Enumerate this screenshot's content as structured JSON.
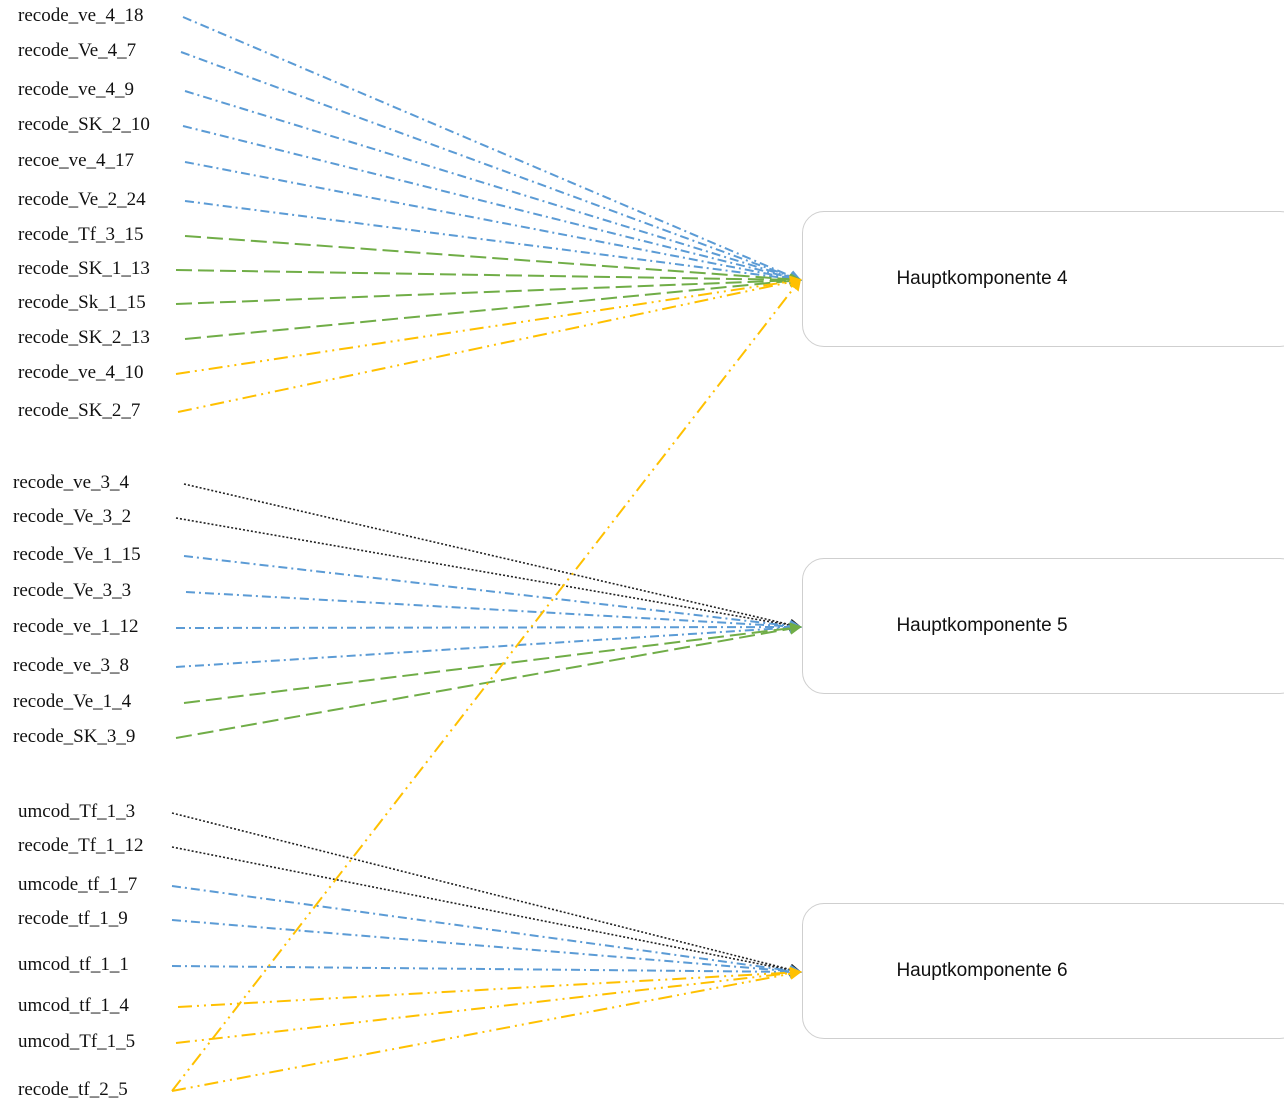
{
  "components": [
    {
      "id": "hk4",
      "label": "Hauptkomponente 4"
    },
    {
      "id": "hk5",
      "label": "Hauptkomponente 5"
    },
    {
      "id": "hk6",
      "label": "Hauptkomponente 6"
    }
  ],
  "line_styles": {
    "blue": {
      "color": "#5b9bd5",
      "dash": "dash-dot"
    },
    "green": {
      "color": "#70ad47",
      "dash": "long-dash"
    },
    "yellow": {
      "color": "#ffc000",
      "dash": "long-dash-dot-dot"
    },
    "black": {
      "color": "#222222",
      "dash": "dotted"
    }
  },
  "variables": [
    {
      "label": "recode_ve_4_18",
      "target": "hk4",
      "style": "blue"
    },
    {
      "label": "recode_Ve_4_7",
      "target": "hk4",
      "style": "blue"
    },
    {
      "label": "recode_ve_4_9",
      "target": "hk4",
      "style": "blue"
    },
    {
      "label": "recode_SK_2_10",
      "target": "hk4",
      "style": "blue"
    },
    {
      "label": "recoe_ve_4_17",
      "target": "hk4",
      "style": "blue"
    },
    {
      "label": "recode_Ve_2_24",
      "target": "hk4",
      "style": "blue"
    },
    {
      "label": "recode_Tf_3_15",
      "target": "hk4",
      "style": "green"
    },
    {
      "label": "recode_SK_1_13",
      "target": "hk4",
      "style": "green"
    },
    {
      "label": "recode_Sk_1_15",
      "target": "hk4",
      "style": "green"
    },
    {
      "label": "recode_SK_2_13",
      "target": "hk4",
      "style": "green"
    },
    {
      "label": "recode_ve_4_10",
      "target": "hk4",
      "style": "yellow"
    },
    {
      "label": "recode_SK_2_7",
      "target": "hk4",
      "style": "yellow"
    },
    {
      "label": "recode_ve_3_4",
      "target": "hk5",
      "style": "black"
    },
    {
      "label": "recode_Ve_3_2",
      "target": "hk5",
      "style": "black"
    },
    {
      "label": "recode_Ve_1_15",
      "target": "hk5",
      "style": "blue"
    },
    {
      "label": "recode_Ve_3_3",
      "target": "hk5",
      "style": "blue"
    },
    {
      "label": "recode_ve_1_12",
      "target": "hk5",
      "style": "blue"
    },
    {
      "label": "recode_ve_3_8",
      "target": "hk5",
      "style": "blue"
    },
    {
      "label": "recode_Ve_1_4",
      "target": "hk5",
      "style": "green"
    },
    {
      "label": "recode_SK_3_9",
      "target": "hk5",
      "style": "green"
    },
    {
      "label": "umcod_Tf_1_3",
      "target": "hk6",
      "style": "black"
    },
    {
      "label": "recode_Tf_1_12",
      "target": "hk6",
      "style": "black"
    },
    {
      "label": "umcode_tf_1_7",
      "target": "hk6",
      "style": "blue"
    },
    {
      "label": "recode_tf_1_9",
      "target": "hk6",
      "style": "blue"
    },
    {
      "label": "umcod_tf_1_1",
      "target": "hk6",
      "style": "blue"
    },
    {
      "label": "umcod_tf_1_4",
      "target": "hk6",
      "style": "yellow"
    },
    {
      "label": "umcod_Tf_1_5",
      "target": "hk6",
      "style": "yellow"
    },
    {
      "label": "recode_tf_2_5",
      "target": "hk6",
      "style": "yellow"
    }
  ],
  "extra_links": [
    {
      "from": "recode_tf_2_5",
      "target": "hk4",
      "style": "yellow"
    }
  ]
}
